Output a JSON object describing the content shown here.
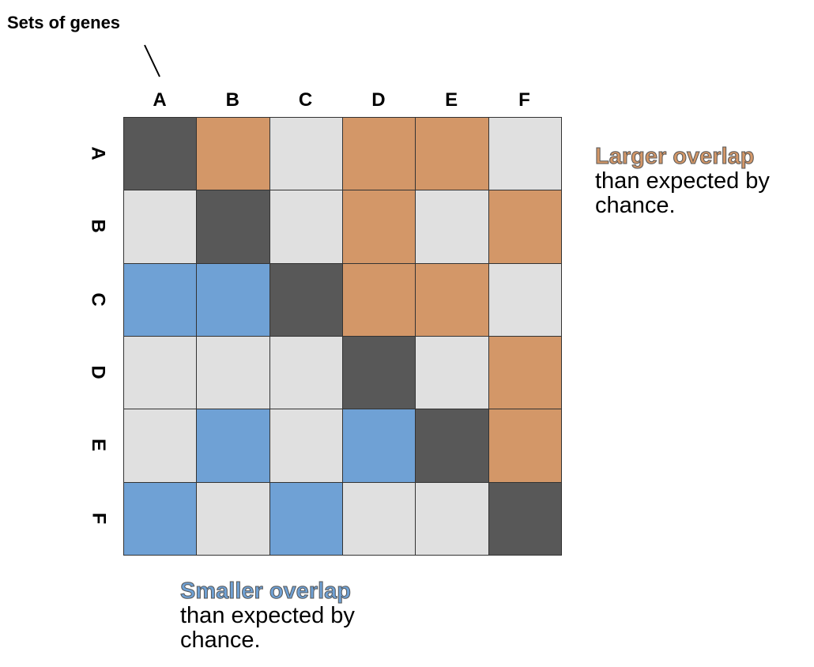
{
  "annotation": {
    "label": "Sets of genes"
  },
  "columns": [
    "A",
    "B",
    "C",
    "D",
    "E",
    "F"
  ],
  "rows": [
    "A",
    "B",
    "C",
    "D",
    "E",
    "F"
  ],
  "colors": {
    "larger": "#d39768",
    "smaller": "#6fa1d5",
    "neutral": "#e0e0e0",
    "self": "#585858"
  },
  "matrix": [
    [
      "self",
      "larger",
      "neutral",
      "larger",
      "larger",
      "neutral"
    ],
    [
      "neutral",
      "self",
      "neutral",
      "larger",
      "neutral",
      "larger"
    ],
    [
      "smaller",
      "smaller",
      "self",
      "larger",
      "larger",
      "neutral"
    ],
    [
      "neutral",
      "neutral",
      "neutral",
      "self",
      "neutral",
      "larger"
    ],
    [
      "neutral",
      "smaller",
      "neutral",
      "smaller",
      "self",
      "larger"
    ],
    [
      "smaller",
      "neutral",
      "smaller",
      "neutral",
      "neutral",
      "self"
    ]
  ],
  "legend": {
    "larger": {
      "title": "Larger overlap",
      "text": "than expected by chance."
    },
    "smaller": {
      "title": "Smaller overlap",
      "text": "than expected by chance."
    }
  }
}
